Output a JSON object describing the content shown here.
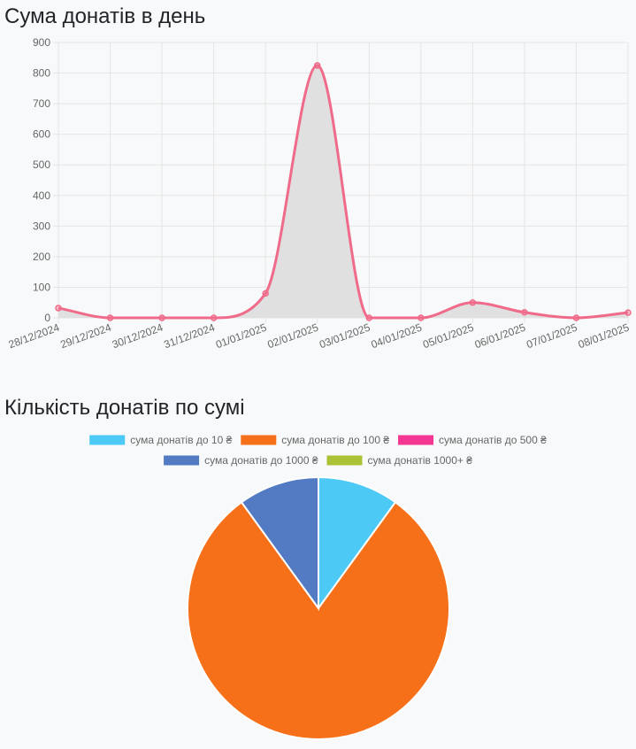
{
  "line_section": {
    "title": "Сума донатів в день"
  },
  "pie_section": {
    "title": "Кількість донатів по сумі"
  },
  "chart_data": [
    {
      "type": "line",
      "title": "Сума донатів в день",
      "x": [
        "28/12/2024",
        "29/12/2024",
        "30/12/2024",
        "31/12/2024",
        "01/01/2025",
        "02/01/2025",
        "03/01/2025",
        "04/01/2025",
        "05/01/2025",
        "06/01/2025",
        "07/01/2025",
        "08/01/2025"
      ],
      "values": [
        32,
        0,
        0,
        0,
        80,
        825,
        0,
        0,
        50,
        18,
        0,
        17
      ],
      "ylim": [
        0,
        900
      ],
      "yticks": [
        0,
        100,
        200,
        300,
        400,
        500,
        600,
        700,
        800,
        900
      ],
      "grid": true,
      "fill": true,
      "colors": {
        "line": "#f06a8a",
        "fill": "#e0e0e0",
        "point": "#f06a8a"
      }
    },
    {
      "type": "pie",
      "title": "Кількість донатів по сумі",
      "legend_position": "top",
      "labels": [
        "сума донатів до 10 ₴",
        "сума донатів до 100 ₴",
        "сума донатів до 500 ₴",
        "сума донатів до 1000 ₴",
        "сума донатів 1000+ ₴"
      ],
      "values": [
        1,
        8,
        0,
        1,
        0
      ],
      "colors": [
        "#4dc9f6",
        "#f67019",
        "#f53794",
        "#537bc4",
        "#acc236"
      ]
    }
  ]
}
